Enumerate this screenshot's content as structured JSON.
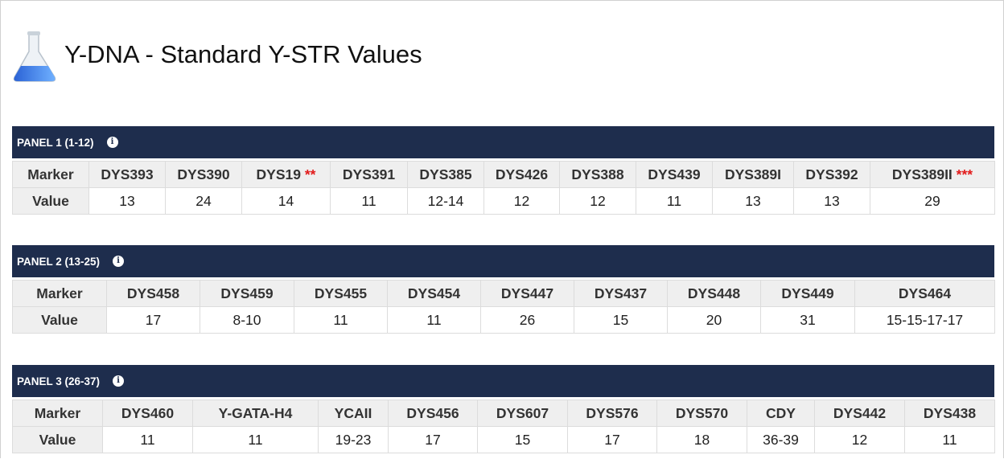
{
  "header": {
    "title": "Y-DNA - Standard Y-STR Values"
  },
  "panels": [
    {
      "title": "PANEL 1 (1-12)",
      "row_labels": [
        "Marker",
        "Value"
      ],
      "markers": [
        {
          "name": "DYS393",
          "value": "13"
        },
        {
          "name": "DYS390",
          "value": "24"
        },
        {
          "name": "DYS19",
          "note": "**",
          "value": "14"
        },
        {
          "name": "DYS391",
          "value": "11"
        },
        {
          "name": "DYS385",
          "value": "12-14"
        },
        {
          "name": "DYS426",
          "value": "12"
        },
        {
          "name": "DYS388",
          "value": "12"
        },
        {
          "name": "DYS439",
          "value": "11"
        },
        {
          "name": "DYS389I",
          "value": "13"
        },
        {
          "name": "DYS392",
          "value": "13"
        },
        {
          "name": "DYS389II",
          "note": "***",
          "value": "29"
        }
      ]
    },
    {
      "title": "PANEL 2 (13-25)",
      "row_labels": [
        "Marker",
        "Value"
      ],
      "markers": [
        {
          "name": "DYS458",
          "value": "17"
        },
        {
          "name": "DYS459",
          "value": "8-10"
        },
        {
          "name": "DYS455",
          "value": "11"
        },
        {
          "name": "DYS454",
          "value": "11"
        },
        {
          "name": "DYS447",
          "value": "26"
        },
        {
          "name": "DYS437",
          "value": "15"
        },
        {
          "name": "DYS448",
          "value": "20"
        },
        {
          "name": "DYS449",
          "value": "31"
        },
        {
          "name": "DYS464",
          "value": "15-15-17-17"
        }
      ]
    },
    {
      "title": "PANEL 3 (26-37)",
      "row_labels": [
        "Marker",
        "Value"
      ],
      "markers": [
        {
          "name": "DYS460",
          "value": "11"
        },
        {
          "name": "Y-GATA-H4",
          "value": "11"
        },
        {
          "name": "YCAII",
          "value": "19-23"
        },
        {
          "name": "DYS456",
          "value": "17"
        },
        {
          "name": "DYS607",
          "value": "15"
        },
        {
          "name": "DYS576",
          "value": "17"
        },
        {
          "name": "DYS570",
          "value": "18"
        },
        {
          "name": "CDY",
          "value": "36-39"
        },
        {
          "name": "DYS442",
          "value": "12"
        },
        {
          "name": "DYS438",
          "value": "11"
        }
      ]
    }
  ]
}
